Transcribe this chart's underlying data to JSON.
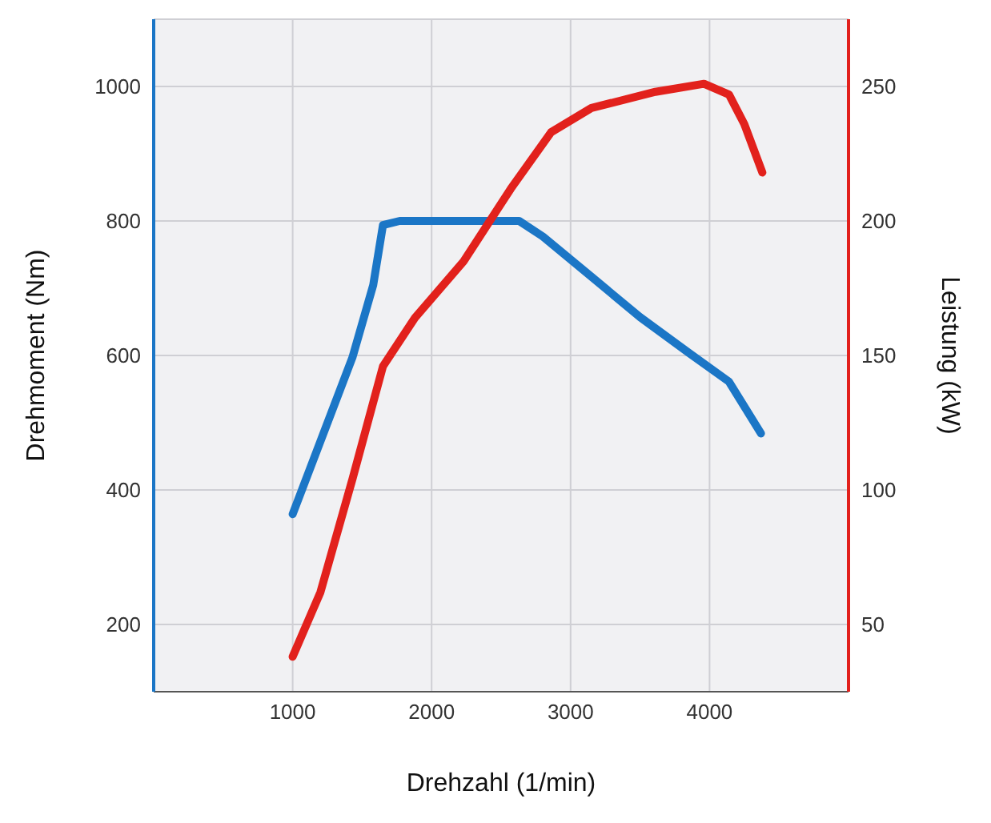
{
  "chart_data": {
    "type": "line",
    "xlabel": "Drehzahl (1/min)",
    "ylabel": "Drehmoment (Nm)",
    "y2label": "Leistung (kW)",
    "xlim": [
      0,
      5000
    ],
    "xticks": [
      1000,
      2000,
      3000,
      4000
    ],
    "ylim": [
      100,
      1100
    ],
    "yticks": [
      200,
      400,
      600,
      800,
      1000
    ],
    "y2lim": [
      25,
      275
    ],
    "y2ticks": [
      50,
      100,
      150,
      200,
      250
    ],
    "grid": true,
    "series": [
      {
        "color": "#1b76c6",
        "x": [
          1000,
          1430,
          1580,
          1650,
          1770,
          2200,
          2630,
          2800,
          3150,
          3500,
          3850,
          4140,
          4370
        ],
        "values": [
          364,
          597,
          705,
          794,
          800,
          800,
          800,
          777,
          717,
          657,
          604,
          561,
          484
        ]
      },
      {
        "color": "#e2211c",
        "axis": "y2",
        "x": [
          1000,
          1200,
          1430,
          1650,
          1880,
          2230,
          2570,
          2860,
          3150,
          3610,
          3960,
          4140,
          4250,
          4380
        ],
        "values": [
          38,
          62,
          104,
          146,
          164,
          185,
          212,
          233,
          242,
          248,
          251,
          247,
          236,
          218
        ]
      }
    ]
  }
}
